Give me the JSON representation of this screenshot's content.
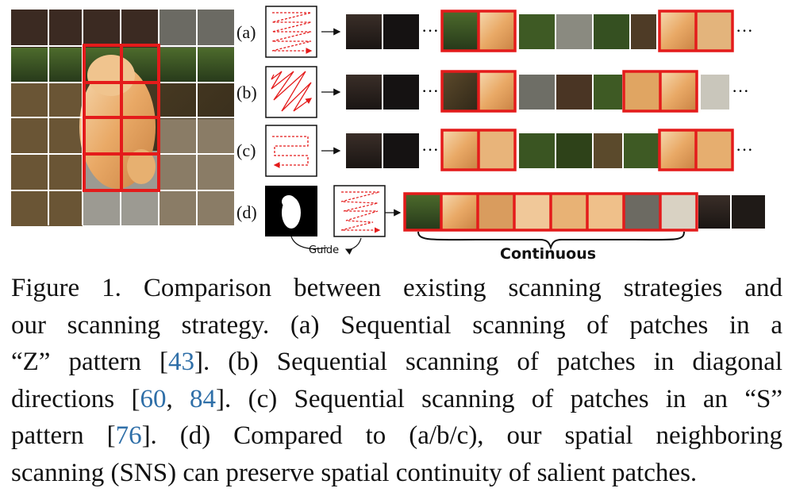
{
  "figure": {
    "rows": [
      {
        "label": "(a)",
        "pattern": "Z"
      },
      {
        "label": "(b)",
        "pattern": "diagonal"
      },
      {
        "label": "(c)",
        "pattern": "S"
      },
      {
        "label": "(d)",
        "pattern": "SNS"
      }
    ],
    "ellipsis": "···",
    "guide_label": "Guide",
    "continuous_label": "Continuous",
    "colors": {
      "highlight": "#e41b1b",
      "grid": "#ffffff",
      "arrow": "#e41b1b"
    }
  },
  "caption": {
    "lines": [
      [
        {
          "t": "Figure 1.  Comparison between existing scanning strategies and"
        }
      ],
      [
        {
          "t": "our scanning strategy.  (a) Sequential scanning of patches in a"
        }
      ],
      [
        {
          "t": "“Z” pattern ["
        },
        {
          "t": "43",
          "ref": true
        },
        {
          "t": "].  (b) Sequential scanning of patches in diagonal"
        }
      ],
      [
        {
          "t": "directions ["
        },
        {
          "t": "60",
          "ref": true
        },
        {
          "t": ", "
        },
        {
          "t": "84",
          "ref": true
        },
        {
          "t": "].  (c) Sequential scanning of patches in an “S”"
        }
      ],
      [
        {
          "t": "pattern ["
        },
        {
          "t": "76",
          "ref": true
        },
        {
          "t": "].  (d) Compared to (a/b/c), our spatial neighboring"
        }
      ],
      [
        {
          "t": "scanning (SNS) can preserve spatial continuity of salient patches."
        }
      ]
    ]
  }
}
